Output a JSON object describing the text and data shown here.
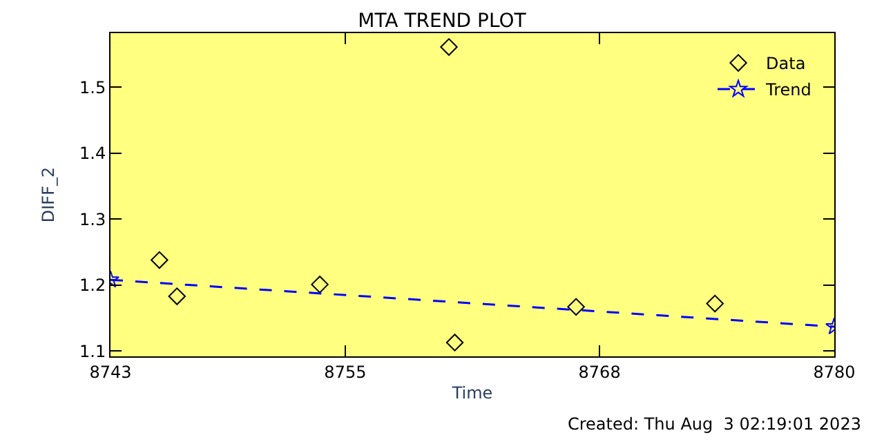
{
  "chart_data": {
    "type": "scatter",
    "title": "MTA TREND PLOT",
    "xlabel": "Time",
    "ylabel": "DIFF_2",
    "xlim": [
      8743,
      8780
    ],
    "xticks": [
      8743,
      8755,
      8768,
      8780
    ],
    "ylim": [
      1.092,
      1.582
    ],
    "yticks": [
      1.1,
      1.2,
      1.3,
      1.4,
      1.5
    ],
    "grid": false,
    "legend": "top right",
    "series": [
      {
        "name": "Data",
        "marker": "diamond",
        "color": "#000000",
        "x": [
          8745.5,
          8746.4,
          8753.7,
          8760.3,
          8760.6,
          8766.8,
          8773.9
        ],
        "values": [
          1.238,
          1.183,
          1.201,
          1.561,
          1.113,
          1.167,
          1.172
        ]
      },
      {
        "name": "Trend",
        "type": "line",
        "marker": "star",
        "line_style": "dashed",
        "color": "#0000ff",
        "x": [
          8743,
          8780
        ],
        "values": [
          1.208,
          1.137
        ]
      }
    ],
    "annotations": [
      "Created: Thu Aug  3 02:19:01 2023"
    ]
  }
}
